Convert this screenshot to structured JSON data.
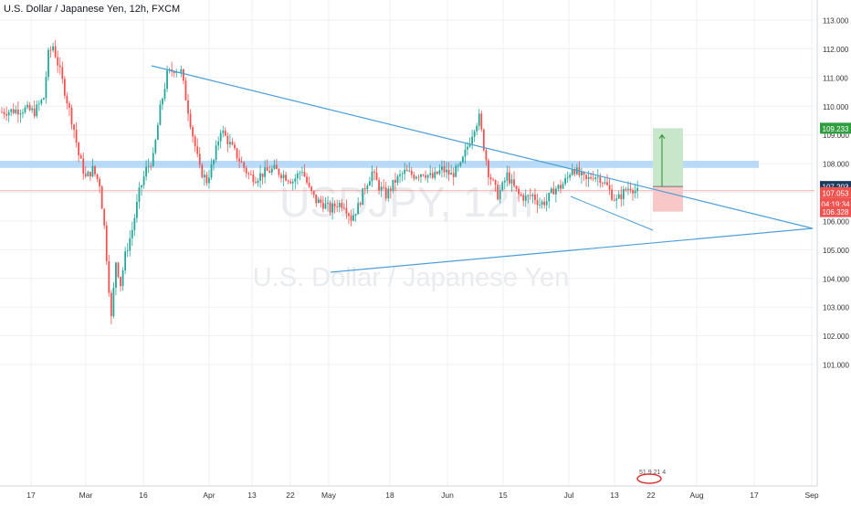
{
  "chart_title": "U.S. Dollar / Japanese Yen, 12h, FXCM",
  "watermark": {
    "symbol": "USDJPY, 12h",
    "name": "U.S. Dollar / Japanese Yen"
  },
  "price_labels": {
    "upper_target": "109.233",
    "entry": "107.203",
    "last_price": "107.053",
    "countdown": "04:19:34",
    "stop": "106.328"
  },
  "footer_badge": "51 9 21 4",
  "colors": {
    "up": "#26a69a",
    "down": "#ef5350",
    "trendline": "#4a9fd8",
    "band": "#a9d2f5",
    "target_zone": "#c8e6c9",
    "stop_zone": "#f8c7c7",
    "label_green": "#2e9e3f",
    "label_blue": "#1f3a5f",
    "label_red": "#ef5350"
  },
  "chart_data": {
    "type": "candlestick",
    "symbol": "USDJPY",
    "timeframe": "12h",
    "source": "FXCM",
    "ylim": [
      100.3,
      113.3
    ],
    "y_ticks": [
      101.0,
      102.0,
      103.0,
      104.0,
      105.0,
      106.0,
      107.0,
      108.0,
      109.0,
      110.0,
      111.0,
      112.0,
      113.0
    ],
    "x_ticks": [
      "17",
      "Mar",
      "16",
      "Apr",
      "13",
      "22",
      "May",
      "18",
      "Jun",
      "15",
      "Jul",
      "13",
      "22",
      "Aug",
      "17",
      "Sep"
    ],
    "grid": true,
    "anchors": [
      {
        "x": 0,
        "y": 109.8
      },
      {
        "x": 10,
        "y": 109.9
      },
      {
        "x": 14,
        "y": 109.8
      },
      {
        "x": 18,
        "y": 110.3
      },
      {
        "x": 20,
        "y": 111.8
      },
      {
        "x": 22,
        "y": 112.1
      },
      {
        "x": 25,
        "y": 111.2
      },
      {
        "x": 28,
        "y": 110.2
      },
      {
        "x": 31,
        "y": 109.2
      },
      {
        "x": 33,
        "y": 108.3
      },
      {
        "x": 36,
        "y": 107.5
      },
      {
        "x": 39,
        "y": 107.8
      },
      {
        "x": 42,
        "y": 107.3
      },
      {
        "x": 44,
        "y": 105.8
      },
      {
        "x": 47,
        "y": 102.6
      },
      {
        "x": 49,
        "y": 104.6
      },
      {
        "x": 51,
        "y": 103.8
      },
      {
        "x": 53,
        "y": 104.8
      },
      {
        "x": 56,
        "y": 105.7
      },
      {
        "x": 59,
        "y": 107.0
      },
      {
        "x": 62,
        "y": 107.8
      },
      {
        "x": 65,
        "y": 108.2
      },
      {
        "x": 68,
        "y": 109.9
      },
      {
        "x": 71,
        "y": 111.1
      },
      {
        "x": 74,
        "y": 111.3
      },
      {
        "x": 77,
        "y": 111.2
      },
      {
        "x": 79,
        "y": 110.3
      },
      {
        "x": 82,
        "y": 109.0
      },
      {
        "x": 85,
        "y": 107.8
      },
      {
        "x": 88,
        "y": 107.4
      },
      {
        "x": 91,
        "y": 108.1
      },
      {
        "x": 94,
        "y": 109.2
      },
      {
        "x": 97,
        "y": 108.8
      },
      {
        "x": 100,
        "y": 108.4
      },
      {
        "x": 103,
        "y": 108.0
      },
      {
        "x": 106,
        "y": 107.6
      },
      {
        "x": 109,
        "y": 107.5
      },
      {
        "x": 113,
        "y": 107.7
      },
      {
        "x": 117,
        "y": 107.8
      },
      {
        "x": 121,
        "y": 107.6
      },
      {
        "x": 125,
        "y": 107.4
      },
      {
        "x": 129,
        "y": 107.8
      },
      {
        "x": 132,
        "y": 107.1
      },
      {
        "x": 135,
        "y": 106.7
      },
      {
        "x": 138,
        "y": 106.6
      },
      {
        "x": 141,
        "y": 106.4
      },
      {
        "x": 144,
        "y": 106.6
      },
      {
        "x": 147,
        "y": 106.6
      },
      {
        "x": 150,
        "y": 106.1
      },
      {
        "x": 153,
        "y": 106.5
      },
      {
        "x": 156,
        "y": 107.2
      },
      {
        "x": 159,
        "y": 107.7
      },
      {
        "x": 162,
        "y": 107.2
      },
      {
        "x": 165,
        "y": 106.9
      },
      {
        "x": 169,
        "y": 107.4
      },
      {
        "x": 173,
        "y": 107.7
      },
      {
        "x": 177,
        "y": 107.6
      },
      {
        "x": 181,
        "y": 107.7
      },
      {
        "x": 185,
        "y": 107.5
      },
      {
        "x": 189,
        "y": 107.8
      },
      {
        "x": 193,
        "y": 107.6
      },
      {
        "x": 197,
        "y": 107.9
      },
      {
        "x": 200,
        "y": 108.6
      },
      {
        "x": 203,
        "y": 109.3
      },
      {
        "x": 205,
        "y": 109.6
      },
      {
        "x": 207,
        "y": 108.6
      },
      {
        "x": 209,
        "y": 107.7
      },
      {
        "x": 211,
        "y": 107.3
      },
      {
        "x": 213,
        "y": 106.9
      },
      {
        "x": 215,
        "y": 107.2
      },
      {
        "x": 217,
        "y": 107.6
      },
      {
        "x": 219,
        "y": 107.3
      },
      {
        "x": 222,
        "y": 106.9
      },
      {
        "x": 225,
        "y": 106.8
      },
      {
        "x": 228,
        "y": 106.9
      },
      {
        "x": 231,
        "y": 106.6
      },
      {
        "x": 234,
        "y": 106.7
      },
      {
        "x": 237,
        "y": 107.1
      },
      {
        "x": 240,
        "y": 107.2
      },
      {
        "x": 243,
        "y": 107.5
      },
      {
        "x": 245,
        "y": 107.9
      },
      {
        "x": 248,
        "y": 107.6
      },
      {
        "x": 251,
        "y": 107.4
      },
      {
        "x": 254,
        "y": 107.6
      },
      {
        "x": 257,
        "y": 107.5
      },
      {
        "x": 260,
        "y": 107.2
      },
      {
        "x": 262,
        "y": 106.9
      },
      {
        "x": 264,
        "y": 106.7
      },
      {
        "x": 266,
        "y": 106.9
      },
      {
        "x": 268,
        "y": 107.1
      },
      {
        "x": 270,
        "y": 107.2
      },
      {
        "x": 273,
        "y": 107.0
      }
    ]
  }
}
